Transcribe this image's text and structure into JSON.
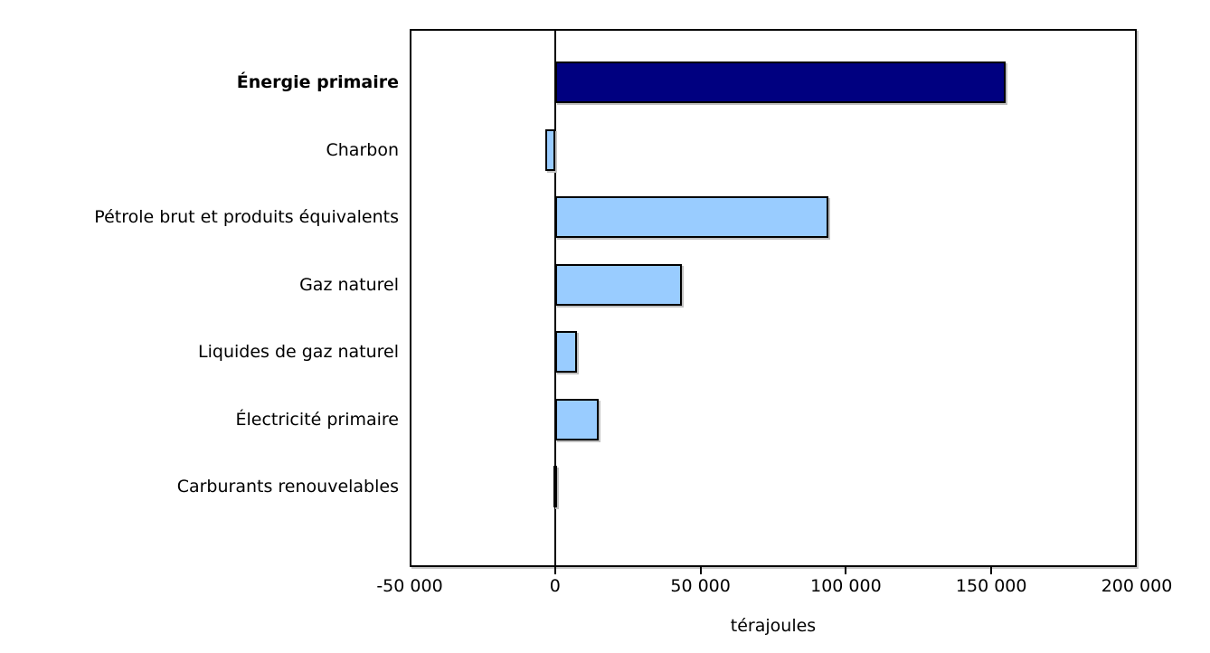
{
  "chart_data": {
    "type": "bar",
    "orientation": "horizontal",
    "title": "",
    "xlabel": "térajoules",
    "ylabel": "",
    "categories": [
      "Énergie primaire",
      "Charbon",
      "Pétrole brut et produits équivalents",
      "Gaz naturel",
      "Liquides de gaz naturel",
      "Électricité primaire",
      "Carburants renouvelables"
    ],
    "values": [
      155000,
      -3500,
      94000,
      43500,
      7500,
      15000,
      -500
    ],
    "unit": "térajoules",
    "emphasized_category": "Énergie primaire",
    "bar_colors": [
      "#000080",
      "#99CCFF",
      "#99CCFF",
      "#99CCFF",
      "#99CCFF",
      "#99CCFF",
      "#99CCFF"
    ],
    "xlim": [
      -50000,
      200000
    ],
    "x_ticks": [
      -50000,
      0,
      50000,
      100000,
      150000,
      200000
    ],
    "x_tick_labels": [
      "-50 000",
      "0",
      "50 000",
      "100 000",
      "150 000",
      "200 000"
    ],
    "grid": false,
    "legend": false,
    "colors": {
      "primary_bar": "#000080",
      "secondary_bar": "#99CCFF",
      "bar_border": "#000000",
      "axis": "#000000",
      "text": "#000000",
      "background": "#ffffff"
    }
  }
}
